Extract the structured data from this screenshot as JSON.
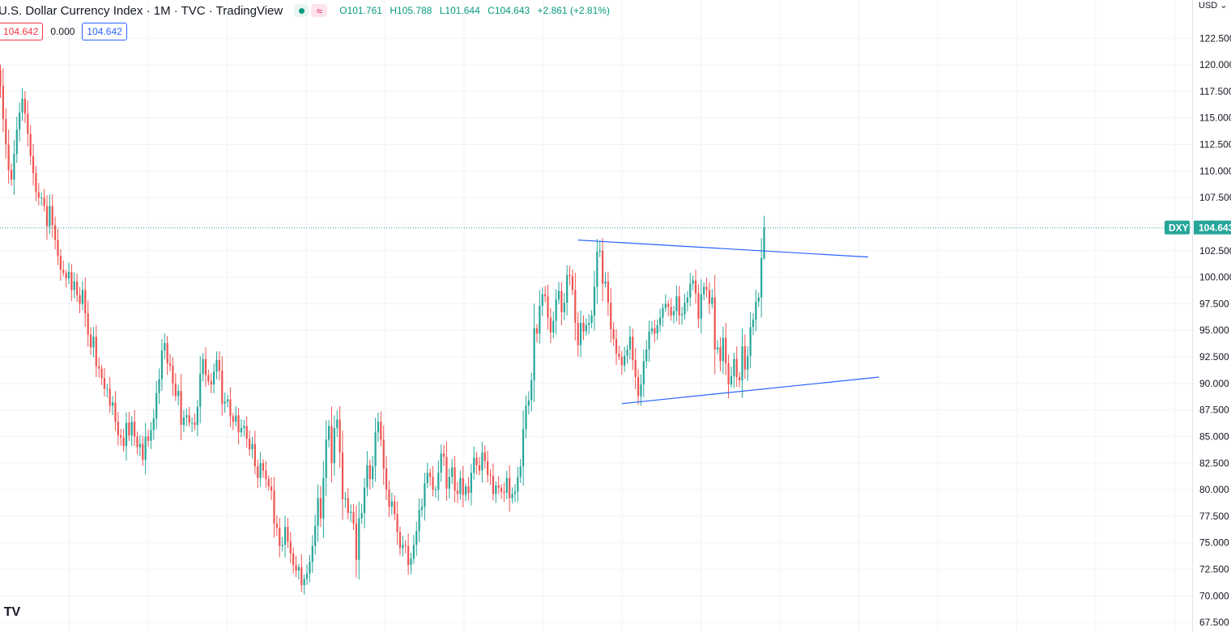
{
  "header": {
    "title": "U.S. Dollar Currency Index · 1M · TVC · TradingView",
    "ohlc": {
      "o_label": "O",
      "o": "101.761",
      "h_label": "H",
      "h": "105.788",
      "l_label": "L",
      "l": "101.644",
      "c_label": "C",
      "c": "104.643",
      "change": "+2.861 (+2.81%)"
    },
    "status_dot_icon": "market-open-dot-icon",
    "wave_icon": "≈"
  },
  "indicator_boxes": {
    "value1": "104.642",
    "value2": "0.000",
    "value3": "104.642"
  },
  "currency": "USD",
  "currency_icon": "chevron-down-icon",
  "symbol_label": "DXY",
  "price_label": "104.643",
  "logo_text": "TV",
  "colors": {
    "up": "#26a69a",
    "down": "#ef5350",
    "trendline": "#2962ff",
    "badge": "#26a69a"
  },
  "chart_data": {
    "type": "candlestick",
    "ylim": [
      66.6,
      126.1
    ],
    "yticks": [
      67.5,
      70,
      72.5,
      75,
      77.5,
      80,
      82.5,
      85,
      87.5,
      90,
      92.5,
      95,
      97.5,
      100,
      102.5,
      105,
      107.5,
      110,
      112.5,
      115,
      117.5,
      120,
      122.5
    ],
    "ytick_labels": [
      "67.500",
      "70.000",
      "72.500",
      "75.000",
      "77.500",
      "80.000",
      "82.500",
      "85.000",
      "87.500",
      "90.000",
      "92.500",
      "95.000",
      "97.500",
      "100.000",
      "102.500",
      "105.000",
      "107.500",
      "110.000",
      "112.500",
      "115.000",
      "117.500",
      "120.000",
      "122.500"
    ],
    "last_price": 104.643,
    "closes": [
      118,
      114.9,
      112.5,
      110.1,
      109.2,
      111.6,
      113.9,
      115.5,
      116.8,
      115.4,
      113.5,
      111.4,
      109.8,
      108,
      107.5,
      107.5,
      106.7,
      104.8,
      106.7,
      104.9,
      103.5,
      102,
      100.7,
      100.4,
      99.9,
      100.5,
      98.8,
      99.6,
      98.3,
      97.5,
      98.8,
      96.6,
      94.6,
      93.4,
      94.4,
      91.6,
      91.4,
      90.5,
      89.5,
      89.5,
      87.9,
      88.2,
      86.4,
      85.1,
      84.9,
      84.1,
      86.3,
      85.1,
      86.4,
      85,
      84,
      84.3,
      82.8,
      85,
      84.6,
      85.6,
      86.7,
      89.1,
      90.4,
      93.1,
      93.8,
      91.9,
      91.7,
      90,
      88.8,
      89.3,
      86.1,
      86.8,
      87,
      86.3,
      86.3,
      86.1,
      87.8,
      90.9,
      92.3,
      90.8,
      90.2,
      89.9,
      91.1,
      92.2,
      91.2,
      88.1,
      88.3,
      88.5,
      86.9,
      86.4,
      87,
      85.4,
      85.8,
      86,
      84.8,
      83.8,
      84.3,
      82.2,
      81.1,
      82.5,
      81.8,
      81,
      80.3,
      79.9,
      76.8,
      76.4,
      74.7,
      74.8,
      76.5,
      75.1,
      74,
      72.9,
      72.4,
      72.7,
      71,
      71.6,
      72.1,
      73.2,
      74.7,
      76.6,
      79.2,
      77.3,
      81.1,
      84.7,
      86,
      82.5,
      85.8,
      86.6,
      83.5,
      79.1,
      79.2,
      77.8,
      77.9,
      76.8,
      73.4,
      77.3,
      77.8,
      80.2,
      82.3,
      81,
      82.2,
      85.4,
      86.4,
      84.7,
      82,
      80,
      78.4,
      78.9,
      77.7,
      76,
      74.5,
      74.8,
      74.7,
      72.9,
      73.5,
      74.8,
      76.1,
      78.1,
      78.4,
      80.6,
      81.6,
      81.2,
      80,
      80,
      81.6,
      83.4,
      83.1,
      80.1,
      81.2,
      82.1,
      79.9,
      79.6,
      81.1,
      79.5,
      80.3,
      79.7,
      81.6,
      83,
      82.3,
      81.8,
      83.5,
      82.7,
      81.4,
      81.3,
      79.6,
      80.4,
      80.2,
      79.8,
      79.7,
      81.1,
      79.2,
      79.6,
      79.8,
      81.2,
      82.2,
      85.7,
      87.9,
      88.4,
      90.3,
      95.2,
      94.7,
      97.3,
      98.4,
      98.2,
      96.2,
      94.8,
      95.9,
      97.9,
      98.7,
      96.7,
      97.6,
      100.2,
      100.1,
      98.8,
      95.7,
      93.6,
      95.7,
      94.9,
      95.5,
      95.7,
      96.4,
      99.1,
      102.4,
      102.5,
      99.4,
      99.6,
      97.6,
      95.1,
      94.2,
      92.8,
      92.5,
      91.7,
      92.6,
      93.2,
      94.4,
      92.2,
      90.6,
      88.8,
      89.9,
      92.1,
      93.2,
      94.9,
      95.2,
      94.7,
      95.5,
      96.2,
      97.1,
      97.5,
      97.2,
      96.4,
      96.8,
      98.2,
      96.4,
      96.5,
      97.6,
      98.1,
      99.4,
      99.7,
      98.5,
      96.1,
      98.4,
      99.1,
      98.8,
      97.5,
      98.1,
      93.2,
      93.4,
      92.1,
      94.3,
      91.9,
      89.9,
      90.7,
      92.3,
      90.6,
      90.3,
      93.5,
      91.3,
      92.6,
      95.3,
      96,
      97.7,
      98.1,
      101.8,
      104.7
    ]
  }
}
